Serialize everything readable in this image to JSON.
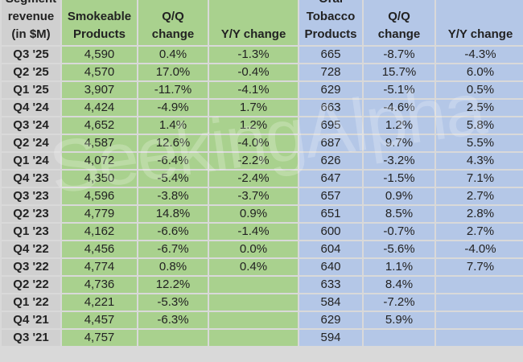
{
  "headers": [
    "Segment revenue (in $M)",
    "Smokeable Products",
    "Q/Q change",
    "Y/Y change",
    "Oral Tobacco Products",
    "Q/Q change",
    "Y/Y change"
  ],
  "header_lines": [
    [
      "Segment",
      "revenue",
      "(in $M)"
    ],
    [
      "Smokeable",
      "Products"
    ],
    [
      "Q/Q",
      "change"
    ],
    [
      "Y/Y change"
    ],
    [
      "Oral",
      "Tobacco",
      "Products"
    ],
    [
      "Q/Q",
      "change"
    ],
    [
      "Y/Y change"
    ]
  ],
  "rows": [
    [
      "Q3 '25",
      "4,590",
      "0.4%",
      "-1.3%",
      "665",
      "-8.7%",
      "-4.3%"
    ],
    [
      "Q2 '25",
      "4,570",
      "17.0%",
      "-0.4%",
      "728",
      "15.7%",
      "6.0%"
    ],
    [
      "Q1 '25",
      "3,907",
      "-11.7%",
      "-4.1%",
      "629",
      "-5.1%",
      "0.5%"
    ],
    [
      "Q4 '24",
      "4,424",
      "-4.9%",
      "1.7%",
      "663",
      "-4.6%",
      "2.5%"
    ],
    [
      "Q3 '24",
      "4,652",
      "1.4%",
      "1.2%",
      "695",
      "1.2%",
      "5.8%"
    ],
    [
      "Q2 '24",
      "4,587",
      "12.6%",
      "-4.0%",
      "687",
      "9.7%",
      "5.5%"
    ],
    [
      "Q1 '24",
      "4,072",
      "-6.4%",
      "-2.2%",
      "626",
      "-3.2%",
      "4.3%"
    ],
    [
      "Q4 '23",
      "4,350",
      "-5.4%",
      "-2.4%",
      "647",
      "-1.5%",
      "7.1%"
    ],
    [
      "Q3 '23",
      "4,596",
      "-3.8%",
      "-3.7%",
      "657",
      "0.9%",
      "2.7%"
    ],
    [
      "Q2 '23",
      "4,779",
      "14.8%",
      "0.9%",
      "651",
      "8.5%",
      "2.8%"
    ],
    [
      "Q1 '23",
      "4,162",
      "-6.6%",
      "-1.4%",
      "600",
      "-0.7%",
      "2.7%"
    ],
    [
      "Q4 '22",
      "4,456",
      "-6.7%",
      "0.0%",
      "604",
      "-5.6%",
      "-4.0%"
    ],
    [
      "Q3 '22",
      "4,774",
      "0.8%",
      "0.4%",
      "640",
      "1.1%",
      "7.7%"
    ],
    [
      "Q2 '22",
      "4,736",
      "12.2%",
      "",
      "633",
      "8.4%",
      ""
    ],
    [
      "Q1 '22",
      "4,221",
      "-5.3%",
      "",
      "584",
      "-7.2%",
      ""
    ],
    [
      "Q4 '21",
      "4,457",
      "-6.3%",
      "",
      "629",
      "5.9%",
      ""
    ],
    [
      "Q3 '21",
      "4,757",
      "",
      "",
      "594",
      "",
      ""
    ]
  ],
  "watermark": "SeekingAlpha",
  "colors": {
    "label": "#d0d0d0",
    "smokeable": "#a9d18e",
    "oral": "#b4c7e7",
    "grid": "#d9d9d9"
  }
}
